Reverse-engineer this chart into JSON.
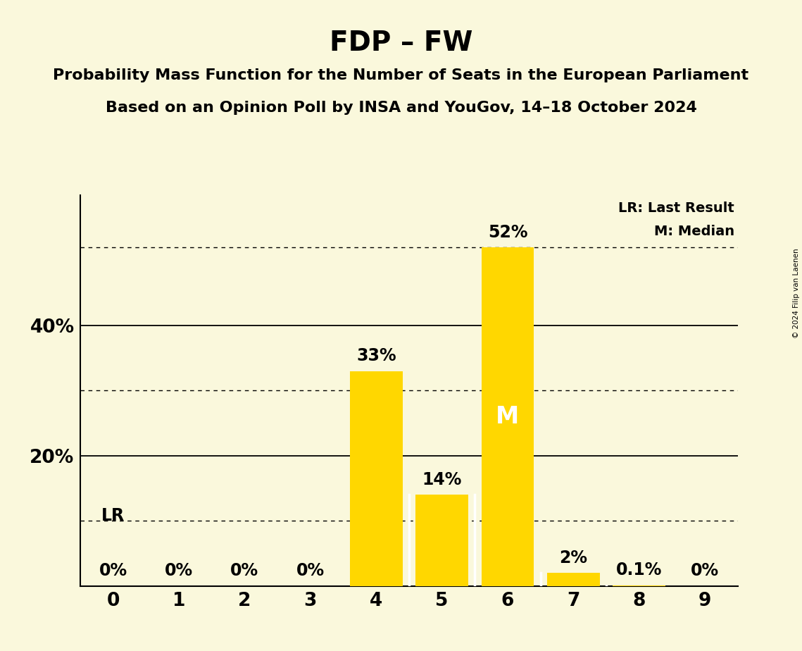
{
  "title": "FDP – FW",
  "subtitle1": "Probability Mass Function for the Number of Seats in the European Parliament",
  "subtitle2": "Based on an Opinion Poll by INSA and YouGov, 14–18 October 2024",
  "copyright": "© 2024 Filip van Laenen",
  "categories": [
    0,
    1,
    2,
    3,
    4,
    5,
    6,
    7,
    8,
    9
  ],
  "values": [
    0.0,
    0.0,
    0.0,
    0.0,
    33.0,
    14.0,
    52.0,
    2.0,
    0.1,
    0.0
  ],
  "labels": [
    "0%",
    "0%",
    "0%",
    "0%",
    "33%",
    "14%",
    "52%",
    "2%",
    "0.1%",
    "0%"
  ],
  "bar_color": "#FFD700",
  "background_color": "#FAF8DC",
  "median_seat": 6,
  "lr_seat": 0,
  "solid_gridlines": [
    20.0,
    40.0
  ],
  "dotted_gridlines": [
    10.0,
    30.0,
    52.0
  ],
  "ylim": [
    0,
    60
  ],
  "xlim": [
    -0.5,
    9.5
  ],
  "legend_lr": "LR: Last Result",
  "legend_m": "M: Median",
  "title_fontsize": 28,
  "subtitle_fontsize": 16,
  "tick_fontsize": 19,
  "label_fontsize": 17,
  "legend_fontsize": 14
}
